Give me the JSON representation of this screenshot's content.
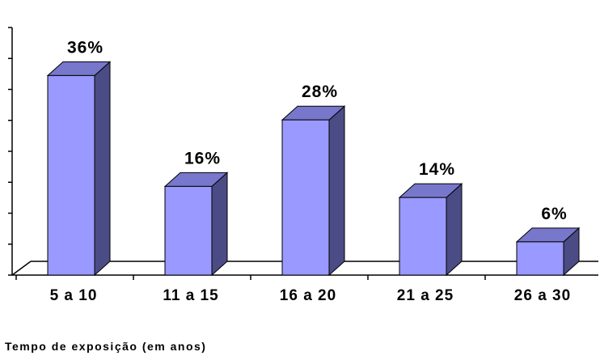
{
  "chart_data": {
    "type": "bar",
    "categories": [
      "5 a 10",
      "11 a 15",
      "16 a 20",
      "21 a 25",
      "26 a 30"
    ],
    "values": [
      36,
      16,
      28,
      14,
      6
    ],
    "value_labels": [
      "36%",
      "16%",
      "28%",
      "14%",
      "6%"
    ],
    "title": "",
    "xlabel": "Tempo de exposição (em anos)",
    "ylabel": "",
    "ylim": [
      0,
      40
    ],
    "grid": false,
    "legend": "none",
    "style": "3d-column"
  },
  "colors": {
    "bar_front": "#9999ff",
    "bar_top": "#7777cc",
    "bar_side": "#4b4b86",
    "axis": "#000000"
  }
}
